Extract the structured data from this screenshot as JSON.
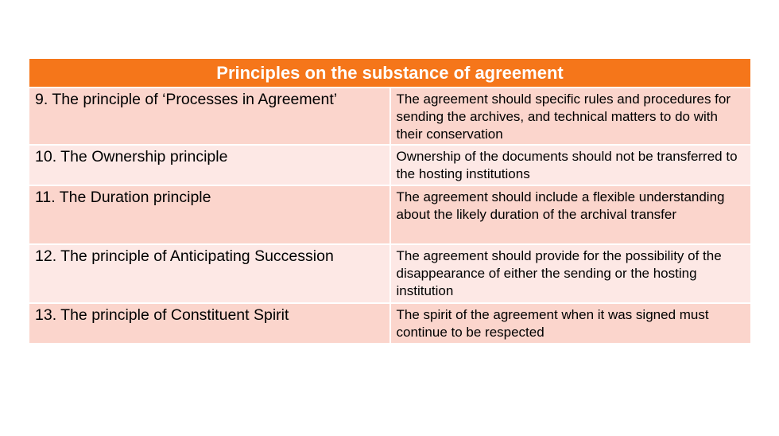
{
  "table": {
    "title": "Principles on the substance of agreement",
    "colors": {
      "header_bg": "#f5761a",
      "row_dark": "#fbd5cc",
      "row_light": "#fde8e5"
    },
    "rows": [
      {
        "principle": "9. The principle of ‘Processes in Agreement’",
        "description": "The agreement should specific rules and procedures for sending the archives, and technical matters to do with their conservation"
      },
      {
        "principle": "10. The Ownership principle",
        "description": "Ownership of the documents should not be transferred to the hosting institutions"
      },
      {
        "principle": "11. The Duration principle",
        "description": "The agreement should include a flexible understanding about the likely duration of the archival transfer"
      },
      {
        "principle": "12. The principle of Anticipating Succession",
        "description": "The agreement should provide for the possibility of the disappearance of either the sending or the hosting institution"
      },
      {
        "principle": "13. The principle of Constituent Spirit",
        "description": "The spirit of the agreement when it was signed must continue to be respected"
      }
    ]
  }
}
